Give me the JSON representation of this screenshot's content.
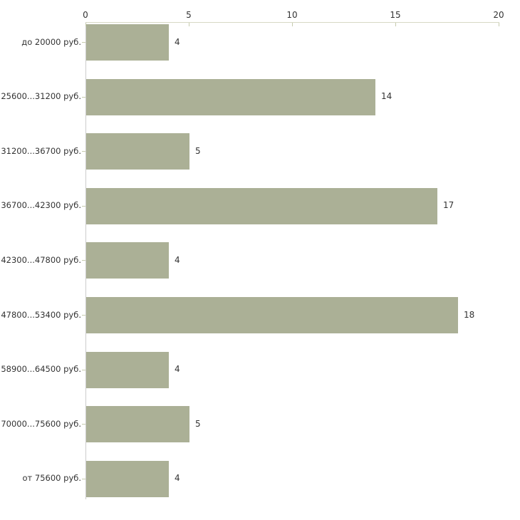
{
  "chart_data": {
    "type": "bar",
    "orientation": "horizontal",
    "title": "",
    "xlabel": "",
    "ylabel": "",
    "categories": [
      "до 20000 руб.",
      "25600...31200 руб.",
      "31200...36700 руб.",
      "36700...42300 руб.",
      "42300...47800 руб.",
      "47800...53400 руб.",
      "58900...64500 руб.",
      "70000...75600 руб.",
      "от 75600 руб."
    ],
    "values": [
      4,
      14,
      5,
      17,
      4,
      18,
      4,
      5,
      4
    ],
    "value_labels": [
      "4",
      "14",
      "5",
      "17",
      "4",
      "18",
      "4",
      "5",
      "4"
    ],
    "xlim": [
      0,
      20
    ],
    "x_ticks": [
      0,
      5,
      10,
      15,
      20
    ],
    "x_tick_labels": [
      "0",
      "5",
      "10",
      "15",
      "20"
    ],
    "grid": false,
    "legend": null,
    "axis_position": "top",
    "colors": {
      "bar_fill": "#abb096",
      "x_axis_line": "#d7d9c5",
      "y_axis_line": "#cccccc",
      "tick_mark": "#c6cbae",
      "text": "#333333",
      "background": "#ffffff"
    }
  }
}
